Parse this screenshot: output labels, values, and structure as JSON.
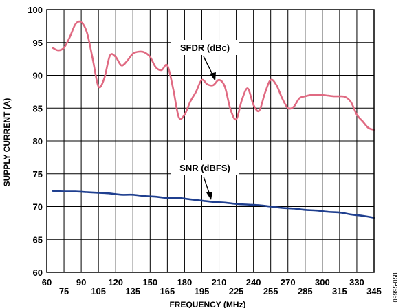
{
  "chart_data": {
    "type": "line",
    "xlabel": "FREQUENCY (MHz)",
    "ylabel": "SUPPLY CURRENT (A)",
    "xlim": [
      60,
      345
    ],
    "ylim": [
      60,
      100
    ],
    "grid": true,
    "x_tick_labels": [
      "60",
      "75",
      "90",
      "105",
      "120",
      "135",
      "150",
      "165",
      "180",
      "195",
      "210",
      "225",
      "240",
      "255",
      "270",
      "285",
      "300",
      "315",
      "330",
      "345"
    ],
    "y_tick_labels": [
      "100",
      "95",
      "90",
      "85",
      "80",
      "75",
      "70",
      "65",
      "60"
    ],
    "annotations": {
      "sfdr_label": "SFDR (dBc)",
      "snr_label": "SNR (dBFS)"
    },
    "figure_id": "09995-058",
    "series": [
      {
        "name": "SFDR (dBc)",
        "color": "#e06a82",
        "x": [
          65,
          70,
          75,
          80,
          85,
          90,
          95,
          100,
          105,
          110,
          115,
          120,
          125,
          130,
          135,
          140,
          145,
          150,
          155,
          160,
          165,
          170,
          175,
          180,
          185,
          190,
          195,
          200,
          205,
          210,
          215,
          220,
          225,
          230,
          235,
          240,
          245,
          250,
          255,
          260,
          265,
          270,
          275,
          280,
          285,
          290,
          295,
          300,
          305,
          310,
          315,
          320,
          325,
          330,
          335,
          340,
          345
        ],
        "y": [
          94.2,
          93.8,
          94.2,
          95.8,
          97.8,
          98.1,
          96.5,
          92.5,
          88.3,
          89.5,
          93.0,
          92.8,
          91.5,
          92.2,
          93.3,
          93.6,
          93.5,
          92.8,
          91.2,
          90.8,
          91.5,
          88.0,
          83.6,
          84.0,
          86.0,
          87.5,
          89.3,
          88.6,
          88.5,
          89.3,
          88.3,
          84.8,
          83.3,
          86.3,
          88.0,
          85.5,
          84.6,
          87.3,
          89.3,
          88.5,
          86.5,
          85.0,
          85.2,
          86.5,
          86.8,
          87.0,
          87.0,
          87.0,
          86.9,
          86.8,
          86.8,
          86.7,
          85.9,
          84.0,
          83.0,
          82.0,
          81.7
        ]
      },
      {
        "name": "SNR (dBFS)",
        "color": "#1f3f8f",
        "x": [
          65,
          75,
          85,
          95,
          105,
          115,
          125,
          135,
          145,
          155,
          165,
          175,
          185,
          195,
          205,
          215,
          225,
          235,
          245,
          255,
          265,
          275,
          285,
          295,
          305,
          315,
          325,
          335,
          345
        ],
        "y": [
          72.4,
          72.3,
          72.3,
          72.2,
          72.1,
          72.0,
          71.8,
          71.8,
          71.6,
          71.5,
          71.3,
          71.3,
          71.1,
          70.9,
          70.7,
          70.6,
          70.4,
          70.3,
          70.2,
          70.0,
          69.8,
          69.7,
          69.5,
          69.4,
          69.2,
          69.1,
          68.8,
          68.6,
          68.3
        ]
      }
    ]
  }
}
